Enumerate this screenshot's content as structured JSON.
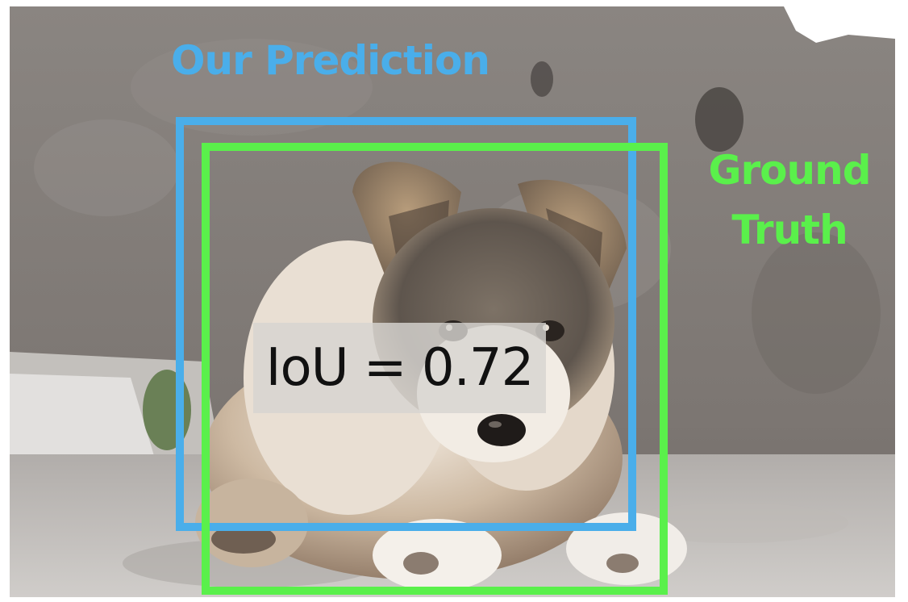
{
  "prediction_label": "Our Prediction",
  "ground_truth_label": [
    "Ground",
    "Truth"
  ],
  "iou_text": "IoU = 0.72",
  "colors": {
    "prediction": "#4aaeea",
    "ground_truth": "#5af04b",
    "iou_panel": "#d7d4d1"
  },
  "icons": {
    "photo": "puppy-photo"
  }
}
